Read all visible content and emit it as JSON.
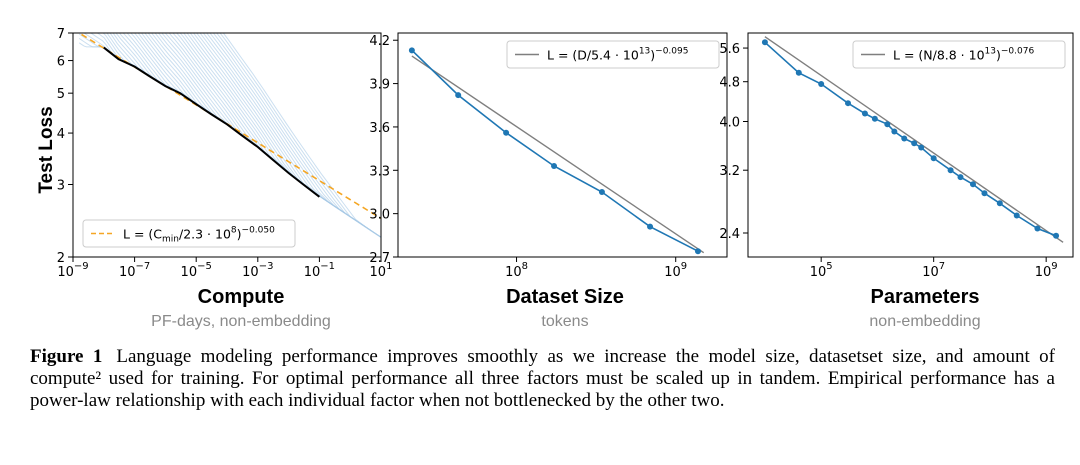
{
  "figure": {
    "label": "Figure 1",
    "caption": "Language modeling performance improves smoothly as we increase the model size, datasetset size, and amount of compute² used for training. For optimal performance all three factors must be scaled up in tandem. Empirical performance has a power-law relationship with each individual factor when not bottlenecked by the other two."
  },
  "panels": [
    {
      "title": "Compute",
      "subtitle": "PF-days, non-embedding"
    },
    {
      "title": "Dataset Size",
      "subtitle": "tokens"
    },
    {
      "title": "Parameters",
      "subtitle": "non-embedding"
    }
  ],
  "colors": {
    "curve": "#1f77b4",
    "fit": "#7f7f7f",
    "frontier": "#000000",
    "trend": "#f5a623",
    "light": "#a9c9e6"
  },
  "chart_data": [
    {
      "type": "line",
      "title": "Compute",
      "xlabel": "Compute",
      "ylabel": "Test Loss",
      "xscale": "log",
      "yscale": "log",
      "xlim": [
        1e-09,
        10
      ],
      "ylim": [
        2,
        7
      ],
      "xticks": [
        1e-09,
        1e-07,
        1e-05,
        0.001,
        0.1,
        10
      ],
      "xtick_labels": [
        [
          "10",
          "−9"
        ],
        [
          "10",
          "−7"
        ],
        [
          "10",
          "−5"
        ],
        [
          "10",
          "−3"
        ],
        [
          "10",
          "−1"
        ],
        [
          "10",
          "1"
        ]
      ],
      "yticks": [
        2,
        3,
        4,
        5,
        6,
        7
      ],
      "ytick_labels": [
        "2",
        "3",
        "4",
        "5",
        "6",
        "7"
      ],
      "legend": {
        "label": "L = (C_min/2.3 · 10^8)^−0.050",
        "position": "lower-left"
      },
      "trend_line": {
        "x": [
          1e-09,
          10
        ],
        "y": [
          7.15,
          2.48
        ]
      },
      "frontier": {
        "x": [
          1e-08,
          3e-08,
          1e-07,
          3e-07,
          1e-06,
          3e-06,
          1e-05,
          3e-05,
          0.0001,
          0.0003,
          0.001,
          0.003,
          0.01,
          0.03,
          0.1
        ],
        "y": [
          6.45,
          6.05,
          5.8,
          5.5,
          5.2,
          5.0,
          4.7,
          4.45,
          4.2,
          3.95,
          3.7,
          3.45,
          3.2,
          3.0,
          2.8
        ]
      },
      "runs_note": "many light blue learning curves"
    },
    {
      "type": "line",
      "title": "Dataset Size",
      "xlabel": "Dataset Size",
      "xscale": "log",
      "xlim": [
        18000000.0,
        2100000000.0
      ],
      "ylim": [
        2.7,
        4.25
      ],
      "xticks": [
        100000000.0,
        1000000000.0
      ],
      "xtick_labels": [
        [
          "10",
          "8"
        ],
        [
          "10",
          "9"
        ]
      ],
      "yticks": [
        2.7,
        3.0,
        3.3,
        3.6,
        3.9,
        4.2
      ],
      "ytick_labels": [
        "2.7",
        "3.0",
        "3.3",
        "3.6",
        "3.9",
        "4.2"
      ],
      "legend": {
        "label": "L = (D/5.4 · 10^13)^−0.095",
        "position": "top-right"
      },
      "series": [
        {
          "x": [
            22000000.0,
            43000000.0,
            86000000.0,
            172000000.0,
            344000000.0,
            690000000.0,
            1380000000.0
          ],
          "y": [
            4.13,
            3.82,
            3.56,
            3.33,
            3.15,
            2.91,
            2.74
          ]
        }
      ],
      "fit": {
        "x": [
          22000000.0,
          1500000000.0
        ],
        "y": [
          4.09,
          2.73
        ]
      }
    },
    {
      "type": "line",
      "title": "Parameters",
      "xlabel": "Parameters",
      "xscale": "log",
      "yscale": "log",
      "xlim": [
        5000.0,
        3000000000.0
      ],
      "ylim": [
        2.15,
        6.0
      ],
      "xticks": [
        100000.0,
        10000000.0,
        1000000000.0
      ],
      "xtick_labels": [
        [
          "10",
          "5"
        ],
        [
          "10",
          "7"
        ],
        [
          "10",
          "9"
        ]
      ],
      "yticks": [
        2.4,
        3.2,
        4.0,
        4.8,
        5.6
      ],
      "ytick_labels": [
        "2.4",
        "3.2",
        "4.0",
        "4.8",
        "5.6"
      ],
      "legend": {
        "label": "L = (N/8.8 · 10^13)^−0.076",
        "position": "top-right"
      },
      "series": [
        {
          "x": [
            10000.0,
            40000.0,
            100000.0,
            300000.0,
            600000.0,
            900000.0,
            1500000.0,
            2000000.0,
            3000000.0,
            4500000.0,
            6000000.0,
            10000000.0,
            20000000.0,
            30000000.0,
            50000000.0,
            80000000.0,
            150000000.0,
            300000000.0,
            700000000.0,
            1500000000.0
          ],
          "y": [
            5.75,
            5.0,
            4.75,
            4.35,
            4.15,
            4.05,
            3.95,
            3.82,
            3.7,
            3.62,
            3.55,
            3.38,
            3.2,
            3.1,
            3.0,
            2.88,
            2.75,
            2.6,
            2.45,
            2.37
          ]
        }
      ],
      "fit": {
        "x": [
          10000.0,
          2000000000.0
        ],
        "y": [
          5.9,
          2.3
        ]
      }
    }
  ]
}
